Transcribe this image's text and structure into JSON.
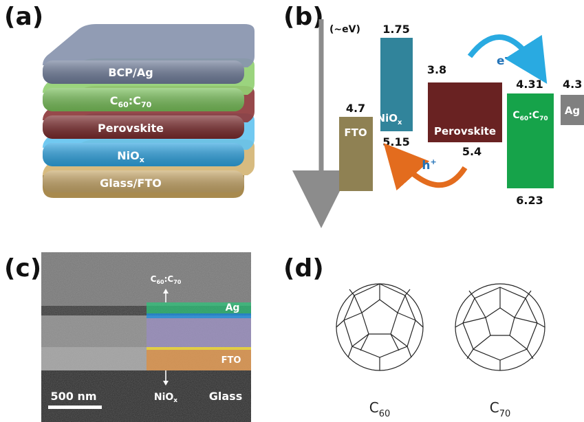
{
  "panels": {
    "a": "(a)",
    "b": "(b)",
    "c": "(c)",
    "d": "(d)"
  },
  "stack": {
    "layers": [
      {
        "base": "BCP/Ag",
        "sub1": "",
        "mid": "",
        "sub2": "",
        "color": "#7d8aa6"
      },
      {
        "base": "C",
        "sub1": "60",
        "mid": ":C",
        "sub2": "70",
        "color": "#79c05a"
      },
      {
        "base": "Perovskite",
        "sub1": "",
        "mid": "",
        "sub2": "",
        "color": "#7a2a2c"
      },
      {
        "base": "NiO",
        "sub1": "x",
        "mid": "",
        "sub2": "",
        "color": "#2ea3e0"
      },
      {
        "base": "Glass/FTO",
        "sub1": "",
        "mid": "",
        "sub2": "",
        "color": "#c8a86a"
      }
    ]
  },
  "energy": {
    "axis_label": "(~eV)",
    "blocks": [
      {
        "label": "FTO",
        "top": "4.7",
        "bottom": "",
        "color": "#8f8153"
      },
      {
        "label": "NiO",
        "label_sub": "x",
        "top": "1.75",
        "bottom": "5.15",
        "color": "#31849b"
      },
      {
        "label": "Perovskite",
        "top": "3.8",
        "bottom": "5.4",
        "color": "#692222"
      },
      {
        "label": "C",
        "label_sub1": "60",
        "label_mid": ":C",
        "label_sub2": "70",
        "top": "4.31",
        "bottom": "6.23",
        "color": "#16a34a"
      },
      {
        "label": "Ag",
        "top": "4.3",
        "bottom": "",
        "color": "#808080"
      }
    ],
    "electron": {
      "base": "e",
      "sup": "-"
    },
    "hole": {
      "base": "h",
      "sup": "+"
    },
    "colors": {
      "electron_arrow": "#29aae1",
      "hole_arrow": "#e36c1e",
      "carrier_text": "#2373b8"
    }
  },
  "sem": {
    "top_arrow": {
      "base": "C",
      "sub1": "60",
      "mid": ":C",
      "sub2": "70"
    },
    "bottom_arrow": {
      "base": "NiO",
      "sub": "x"
    },
    "ag": "Ag",
    "fto": "FTO",
    "glass": "Glass",
    "scale": "500 nm"
  },
  "fullerenes": {
    "c60": {
      "base": "C",
      "sub": "60"
    },
    "c70": {
      "base": "C",
      "sub": "70"
    }
  }
}
